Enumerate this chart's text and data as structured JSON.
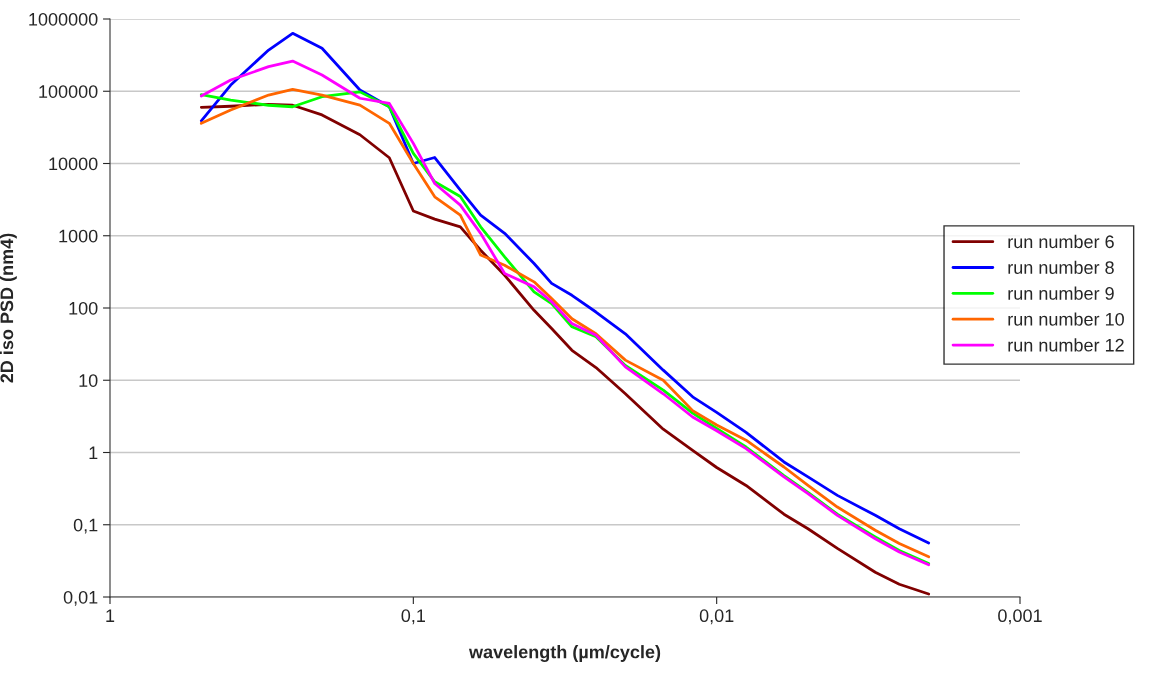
{
  "chart_data": {
    "type": "line",
    "xlabel": "wavelength (µm/cycle)",
    "ylabel": "2D iso PSD (nm4)",
    "x": [
      0.5,
      0.4,
      0.3,
      0.25,
      0.2,
      0.15,
      0.12,
      0.1,
      0.085,
      0.07,
      0.06,
      0.05,
      0.04,
      0.035,
      0.03,
      0.025,
      0.02,
      0.015,
      0.012,
      0.01,
      0.008,
      0.006,
      0.005,
      0.004,
      0.003,
      0.0025,
      0.002
    ],
    "series": [
      {
        "name": "run number 6",
        "color": "#800000",
        "values": [
          60000,
          62000,
          66000,
          64000,
          47000,
          25000,
          12000,
          2200,
          1700,
          1330,
          630,
          284,
          93,
          52,
          26,
          15,
          6.5,
          2.1,
          1.07,
          0.62,
          0.35,
          0.14,
          0.088,
          0.047,
          0.022,
          0.015,
          0.011
        ]
      },
      {
        "name": "run number 8",
        "color": "#0000ff",
        "values": [
          39000,
          122000,
          372000,
          634000,
          393000,
          104000,
          61000,
          10000,
          12100,
          4280,
          1930,
          1080,
          413,
          219,
          150,
          88,
          44,
          13.8,
          5.9,
          3.6,
          1.9,
          0.74,
          0.46,
          0.255,
          0.135,
          0.088,
          0.056
        ]
      },
      {
        "name": "run number 9",
        "color": "#00ff00",
        "values": [
          90000,
          75500,
          64000,
          61000,
          84000,
          98000,
          61000,
          13800,
          5580,
          3500,
          1330,
          510,
          167,
          115,
          55,
          40,
          16,
          7.3,
          3.5,
          2.15,
          1.19,
          0.48,
          0.28,
          0.14,
          0.068,
          0.044,
          0.029
        ]
      },
      {
        "name": "run number 10",
        "color": "#ff6600",
        "values": [
          36000,
          55000,
          88600,
          106000,
          88600,
          64400,
          36000,
          10000,
          3460,
          1930,
          540,
          390,
          230,
          135,
          71,
          44,
          19,
          10,
          3.8,
          2.4,
          1.48,
          0.63,
          0.35,
          0.176,
          0.084,
          0.055,
          0.036
        ]
      },
      {
        "name": "run number 12",
        "color": "#ff00ff",
        "values": [
          86000,
          143000,
          219000,
          262000,
          168000,
          80000,
          68000,
          19000,
          5290,
          2650,
          1080,
          300,
          196,
          122,
          61,
          42,
          15.3,
          6.5,
          3.1,
          2.0,
          1.13,
          0.46,
          0.27,
          0.135,
          0.064,
          0.042,
          0.028
        ]
      }
    ],
    "log": "xy",
    "xlim": [
      1,
      0.001
    ],
    "ylim": [
      0.01,
      1000000
    ],
    "xticks": [
      1,
      {
        "value": 0.1,
        "label": "0,1"
      },
      {
        "value": 0.01,
        "label": "0,01"
      },
      {
        "value": 0.001,
        "label": "0,001"
      }
    ],
    "yticks": [
      {
        "value": 0.01,
        "label": "0,01"
      },
      {
        "value": 0.1,
        "label": "0,1"
      },
      1,
      10,
      100,
      1000,
      10000,
      100000,
      1000000
    ],
    "grid": "y",
    "legend": "right"
  }
}
